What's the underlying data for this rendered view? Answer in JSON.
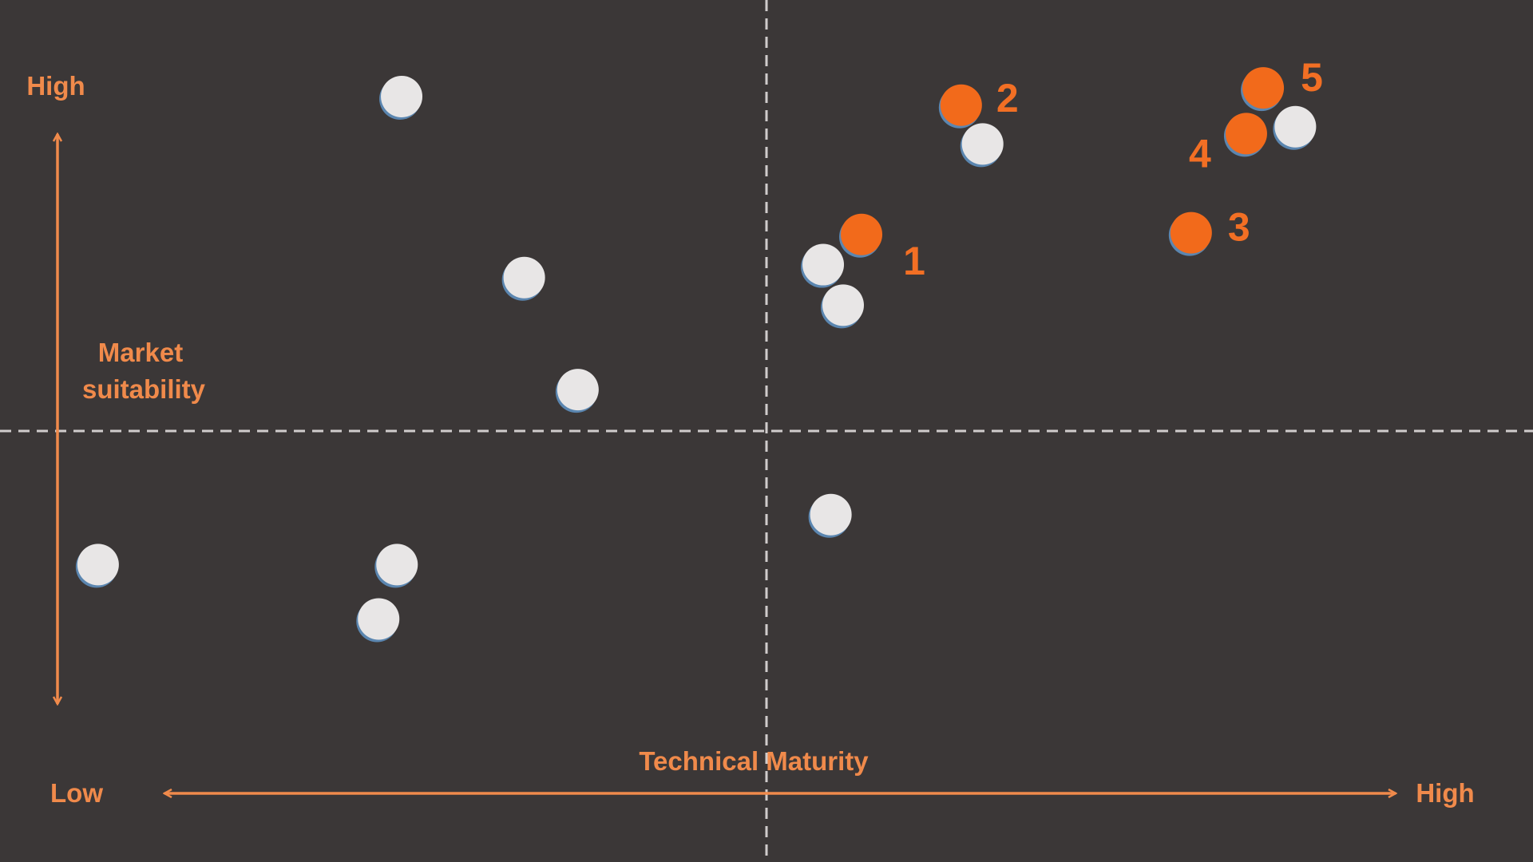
{
  "chart_data": {
    "type": "scatter",
    "xlabel": "Technical Maturity",
    "x_low_label": "Low",
    "x_high_label": "High",
    "ylabel_line1": "Market",
    "ylabel_line2": "suitability",
    "y_high_label": "High",
    "xlim": [
      0,
      100
    ],
    "ylim": [
      0,
      100
    ],
    "quadrant_split": {
      "x": 50,
      "y": 50
    },
    "colors": {
      "background": "#3b3737",
      "accent": "#f08a4b",
      "highlight_point": "#f26a1b",
      "other_point": "#e8e6e6",
      "point_shadow": "#5b86b0",
      "divider": "#d0cccc"
    },
    "series": [
      {
        "name": "",
        "color": "#f26a1b",
        "points": [
          {
            "x": 56.2,
            "y": 72.8,
            "label": "1"
          },
          {
            "x": 62.7,
            "y": 87.8,
            "label": "2"
          },
          {
            "x": 77.7,
            "y": 73.0,
            "label": "3"
          },
          {
            "x": 81.3,
            "y": 84.5,
            "label": "4"
          },
          {
            "x": 82.4,
            "y": 89.8,
            "label": "5"
          }
        ]
      },
      {
        "name": "",
        "color": "#e8e6e6",
        "points": [
          {
            "x": 26.2,
            "y": 88.8
          },
          {
            "x": 34.2,
            "y": 67.8
          },
          {
            "x": 37.7,
            "y": 54.8
          },
          {
            "x": 6.4,
            "y": 34.5
          },
          {
            "x": 25.9,
            "y": 34.5
          },
          {
            "x": 24.7,
            "y": 28.2
          },
          {
            "x": 53.7,
            "y": 69.3
          },
          {
            "x": 55.0,
            "y": 64.6
          },
          {
            "x": 54.2,
            "y": 40.3
          },
          {
            "x": 64.1,
            "y": 83.3
          },
          {
            "x": 84.5,
            "y": 85.3
          }
        ]
      }
    ]
  }
}
